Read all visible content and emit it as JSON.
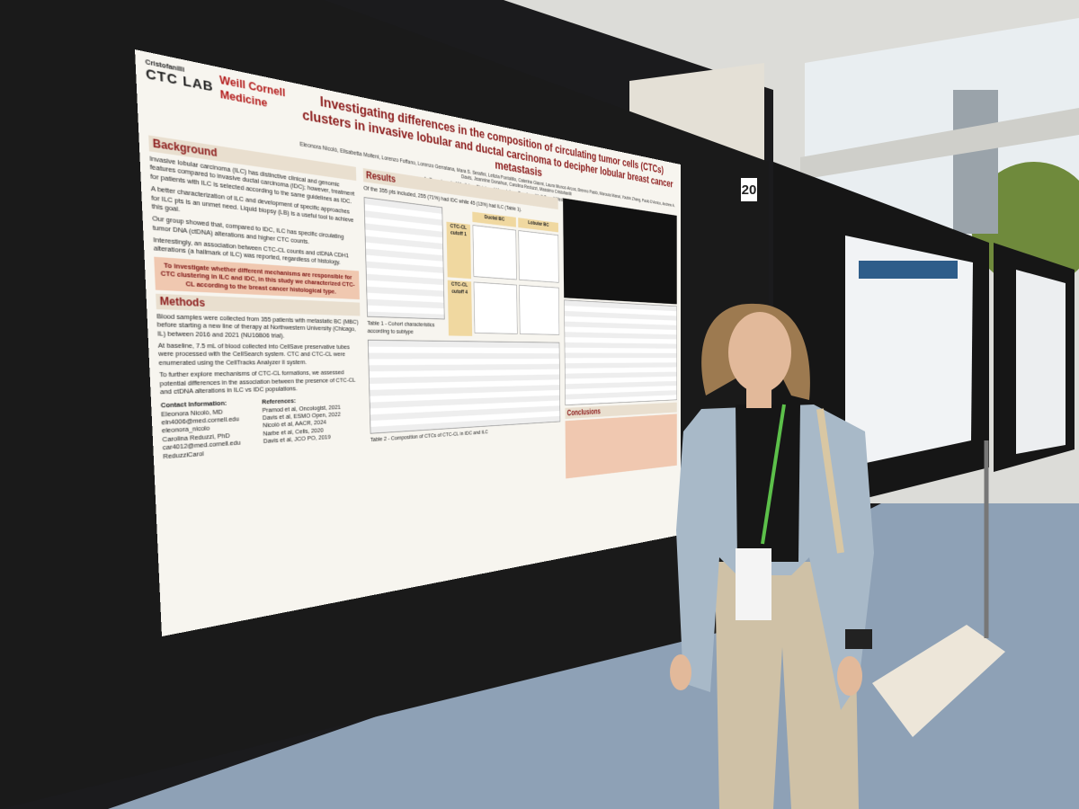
{
  "board_number": "20",
  "poster": {
    "lab_founder": "Cristofanilli",
    "lab_name": "CTC LAB",
    "institution": "Weill Cornell Medicine",
    "title": "Investigating differences in the composition of circulating tumor cells (CTCs) clusters in invasive lobular and ductal carcinoma to decipher lobular breast cancer metastasis",
    "authors": "Eleonora Nicolò, Elisabetta Molteni, Lorenzo Foffano, Lorenzo Gerratana, Mara S. Serafini, Letizia Pontolillo, Caterina Gianni, Laura Munoz-Arcos, Brenno Pastò, Marouia Manai, Youbin Zhang, Paolo D'Amico, Andrew A. Davis, Jeannine Donahue, Carolina Reduzzi, Massimo Cristofanilli",
    "affiliation": "1- Department of Medicine, Division of Hematology-Oncology, Weill Cornell Medicine, New York, NY, USA",
    "background": {
      "heading": "Background",
      "paragraphs": [
        "Invasive lobular carcinoma (ILC) has distinctive clinical and genomic features compared to invasive ductal carcinoma (IDC); however, treatment for patients with ILC is selected according to the same guidelines as IDC.",
        "A better characterization of ILC and development of specific approaches for ILC pts is an unmet need. Liquid biopsy (LB) is a useful tool to achieve this goal.",
        "Our group showed that, compared to IDC, ILC has specific circulating tumor DNA (ctDNA) alterations and higher CTC counts.",
        "Interestingly, an association between CTC-CL counts and ctDNA CDH1 alterations (a hallmark of ILC) was reported, regardless of histology."
      ],
      "aim": "To investigate whether different mechanisms are responsible for CTC clustering in ILC and IDC, in this study we characterized CTC-CL according to the breast cancer histological type."
    },
    "methods": {
      "heading": "Methods",
      "paragraphs": [
        "Blood samples were collected from 355 patients with metastatic BC (MBC) before starting a new line of therapy at Northwestern University (Chicago, IL) between 2016 and 2021 (NU16B06 trial).",
        "At baseline, 7.5 mL of blood collected into CellSave preservative tubes were processed with the CellSearch system. CTC and CTC-CL were enumerated using the CellTracks Analyzer II system.",
        "To further explore mechanisms of CTC-CL formations, we assessed potential differences in the association between the presence of CTC-CL and ctDNA alterations in ILC vs IDC populations."
      ]
    },
    "contact": {
      "heading": "Contact Information:",
      "people": [
        {
          "name": "Eleonora Nicolò, MD",
          "email": "eln4006@med.cornell.edu",
          "handle": "eleonora_nicolo"
        },
        {
          "name": "Carolina Reduzzi, PhD",
          "email": "car4012@med.cornell.edu",
          "handle": "ReduzziCarol"
        }
      ]
    },
    "references": {
      "heading": "References:",
      "items": [
        "Pramod et al, Oncologist, 2021",
        "Davis et al, ESMO Open, 2022",
        "Nicolò et al, AACR, 2024",
        "Narbe et al, Cells, 2020",
        "Davis et al, JCO PO, 2019"
      ]
    },
    "results": {
      "heading": "Results",
      "intro": "Of the 355 pts included, 255 (71%) had IDC while 45 (13%) had ILC (Table 1).",
      "table1_caption": "Table 1 - Cohort characteristics according to subtype",
      "figure_rows": [
        "CTC-CL cutoff 1",
        "CTC-CL cutoff 4"
      ],
      "figure_cols": [
        "Ductal BC",
        "Lobular BC"
      ],
      "table2_caption": "Table 2 - Composition of CTCs of CTC-CL in IDC and ILC"
    },
    "conclusions": {
      "heading": "Conclusions"
    }
  }
}
